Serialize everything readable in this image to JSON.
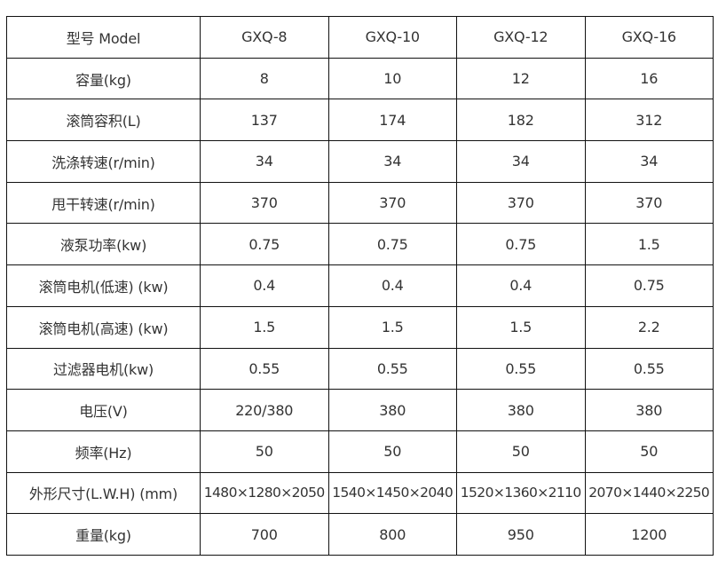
{
  "table": {
    "header": [
      "型号 Model",
      "GXQ-8",
      "GXQ-10",
      "GXQ-12",
      "GXQ-16"
    ],
    "rows": [
      [
        "容量(kg)",
        "8",
        "10",
        "12",
        "16"
      ],
      [
        "滚筒容积(L)",
        "137",
        "174",
        "182",
        "312"
      ],
      [
        "洗涤转速(r/min)",
        "34",
        "34",
        "34",
        "34"
      ],
      [
        "甩干转速(r/min)",
        "370",
        "370",
        "370",
        "370"
      ],
      [
        "液泵功率(kw)",
        "0.75",
        "0.75",
        "0.75",
        "1.5"
      ],
      [
        "滚筒电机(低速) (kw)",
        "0.4",
        "0.4",
        "0.4",
        "0.75"
      ],
      [
        "滚筒电机(高速) (kw)",
        "1.5",
        "1.5",
        "1.5",
        "2.2"
      ],
      [
        "过滤器电机(kw)",
        "0.55",
        "0.55",
        "0.55",
        "0.55"
      ],
      [
        "电压(V)",
        "220/380",
        "380",
        "380",
        "380"
      ],
      [
        "频率(Hz)",
        "50",
        "50",
        "50",
        "50"
      ],
      [
        "外形尺寸(L.W.H) (mm)",
        "1480×1280×2050",
        "1540×1450×2040",
        "1520×1360×2110",
        "2070×1440×2250"
      ],
      [
        "重量(kg)",
        "700",
        "800",
        "950",
        "1200"
      ]
    ]
  }
}
